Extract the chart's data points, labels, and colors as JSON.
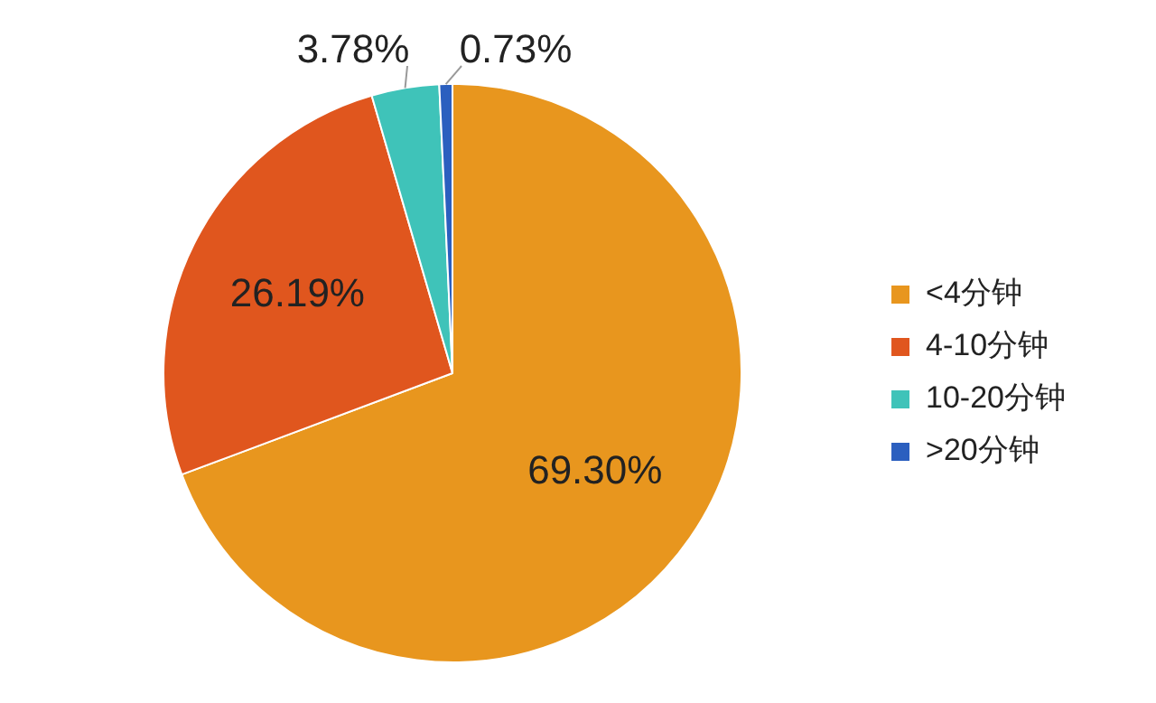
{
  "chart_data": {
    "type": "pie",
    "categories": [
      "<4分钟",
      "4-10分钟",
      "10-20分钟",
      ">20分钟"
    ],
    "values": [
      69.3,
      26.19,
      3.78,
      0.73
    ],
    "colors": [
      "#e8961e",
      "#e0561e",
      "#3fc3b9",
      "#2b5fbf"
    ],
    "value_labels": [
      "69.30%",
      "26.19%",
      "3.78%",
      "0.73%"
    ],
    "legend": "right"
  }
}
